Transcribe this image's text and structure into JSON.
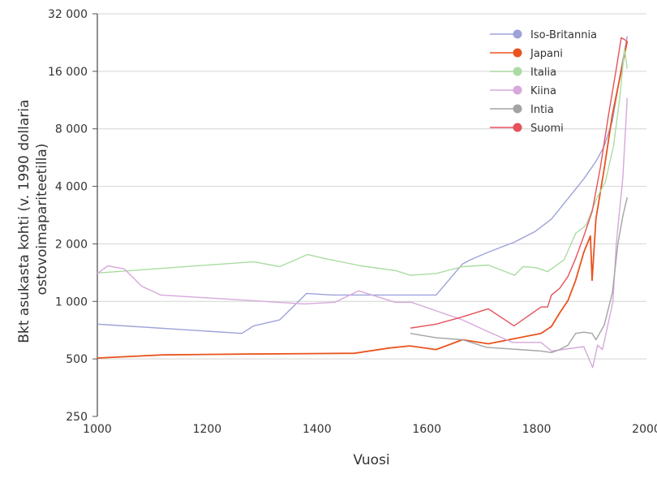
{
  "chart_data": {
    "type": "line",
    "title": "",
    "xlabel": "Vuosi",
    "ylabel_lines": [
      "Bkt asukasta kohti (v. 1990 dollaria",
      "ostovoimapariteetilla)"
    ],
    "xlim": [
      1000,
      2000
    ],
    "ylim": [
      250,
      32000
    ],
    "yscale": "log2",
    "x_ticks": [
      1000,
      1200,
      1400,
      1600,
      1800,
      2000
    ],
    "x_tick_labels": [
      "1000",
      "1200",
      "1400",
      "1600",
      "1800",
      "2000"
    ],
    "y_ticks": [
      250,
      500,
      1000,
      2000,
      4000,
      8000,
      16000,
      32000
    ],
    "y_tick_labels": [
      "250",
      "500",
      "1 000",
      "2 000",
      "4 000",
      "8 000",
      "16 000",
      "32 000"
    ],
    "grid": "horizontal",
    "legend_position": "top-right",
    "series": [
      {
        "name": "Iso-Britannia",
        "color": "#9da2d8",
        "points": [
          [
            1000,
            760
          ],
          [
            1263,
            680
          ],
          [
            1285,
            745
          ],
          [
            1332,
            800
          ],
          [
            1381,
            1100
          ],
          [
            1428,
            1080
          ],
          [
            1542,
            1080
          ],
          [
            1617,
            1080
          ],
          [
            1665,
            1570
          ],
          [
            1679,
            1650
          ],
          [
            1712,
            1810
          ],
          [
            1759,
            2040
          ],
          [
            1797,
            2320
          ],
          [
            1827,
            2700
          ],
          [
            1857,
            3450
          ],
          [
            1886,
            4380
          ],
          [
            1908,
            5400
          ],
          [
            1923,
            6500
          ],
          [
            1938,
            8800
          ],
          [
            1953,
            16000
          ],
          [
            1965,
            24400
          ]
        ]
      },
      {
        "name": "Japani",
        "color": "#e9541f",
        "points": [
          [
            1000,
            505
          ],
          [
            1118,
            525
          ],
          [
            1266,
            530
          ],
          [
            1468,
            535
          ],
          [
            1532,
            570
          ],
          [
            1569,
            585
          ],
          [
            1617,
            560
          ],
          [
            1665,
            630
          ],
          [
            1712,
            600
          ],
          [
            1808,
            680
          ],
          [
            1827,
            740
          ],
          [
            1842,
            870
          ],
          [
            1857,
            1010
          ],
          [
            1871,
            1290
          ],
          [
            1886,
            1810
          ],
          [
            1898,
            2200
          ],
          [
            1901,
            1290
          ],
          [
            1908,
            2700
          ],
          [
            1923,
            4950
          ],
          [
            1938,
            9500
          ],
          [
            1953,
            15500
          ],
          [
            1965,
            23000
          ]
        ]
      },
      {
        "name": "Italia",
        "color": "#aadca2",
        "points": [
          [
            1000,
            1408
          ],
          [
            1285,
            1613
          ],
          [
            1332,
            1520
          ],
          [
            1383,
            1760
          ],
          [
            1413,
            1680
          ],
          [
            1480,
            1535
          ],
          [
            1543,
            1450
          ],
          [
            1570,
            1370
          ],
          [
            1617,
            1400
          ],
          [
            1665,
            1520
          ],
          [
            1712,
            1550
          ],
          [
            1760,
            1370
          ],
          [
            1775,
            1520
          ],
          [
            1800,
            1500
          ],
          [
            1820,
            1430
          ],
          [
            1850,
            1650
          ],
          [
            1871,
            2270
          ],
          [
            1890,
            2500
          ],
          [
            1910,
            3500
          ],
          [
            1925,
            4200
          ],
          [
            1940,
            6500
          ],
          [
            1952,
            12000
          ],
          [
            1960,
            21000
          ],
          [
            1965,
            16500
          ]
        ]
      },
      {
        "name": "Kiina",
        "color": "#d6a8dc",
        "points": [
          [
            1000,
            1400
          ],
          [
            1019,
            1535
          ],
          [
            1049,
            1480
          ],
          [
            1081,
            1200
          ],
          [
            1115,
            1080
          ],
          [
            1281,
            1010
          ],
          [
            1377,
            970
          ],
          [
            1433,
            990
          ],
          [
            1476,
            1135
          ],
          [
            1542,
            990
          ],
          [
            1572,
            990
          ],
          [
            1665,
            800
          ],
          [
            1709,
            700
          ],
          [
            1756,
            610
          ],
          [
            1808,
            610
          ],
          [
            1827,
            550
          ],
          [
            1886,
            580
          ],
          [
            1902,
            450
          ],
          [
            1911,
            590
          ],
          [
            1920,
            560
          ],
          [
            1939,
            1000
          ],
          [
            1945,
            2000
          ],
          [
            1957,
            4450
          ],
          [
            1965,
            11600
          ]
        ]
      },
      {
        "name": "Intia",
        "color": "#a3a3a3",
        "points": [
          [
            1570,
            680
          ],
          [
            1617,
            645
          ],
          [
            1665,
            630
          ],
          [
            1709,
            575
          ],
          [
            1808,
            550
          ],
          [
            1827,
            540
          ],
          [
            1842,
            560
          ],
          [
            1857,
            590
          ],
          [
            1871,
            680
          ],
          [
            1886,
            690
          ],
          [
            1901,
            680
          ],
          [
            1908,
            630
          ],
          [
            1923,
            750
          ],
          [
            1938,
            1110
          ],
          [
            1948,
            2000
          ],
          [
            1957,
            2800
          ],
          [
            1965,
            3500
          ]
        ]
      },
      {
        "name": "Suomi",
        "color": "#e5525a",
        "points": [
          [
            1570,
            725
          ],
          [
            1617,
            760
          ],
          [
            1665,
            830
          ],
          [
            1712,
            915
          ],
          [
            1759,
            745
          ],
          [
            1808,
            935
          ],
          [
            1820,
            935
          ],
          [
            1827,
            1080
          ],
          [
            1842,
            1170
          ],
          [
            1857,
            1350
          ],
          [
            1871,
            1680
          ],
          [
            1886,
            2200
          ],
          [
            1901,
            2950
          ],
          [
            1916,
            5000
          ],
          [
            1931,
            9500
          ],
          [
            1945,
            16500
          ],
          [
            1954,
            24000
          ],
          [
            1965,
            23000
          ]
        ]
      }
    ]
  }
}
